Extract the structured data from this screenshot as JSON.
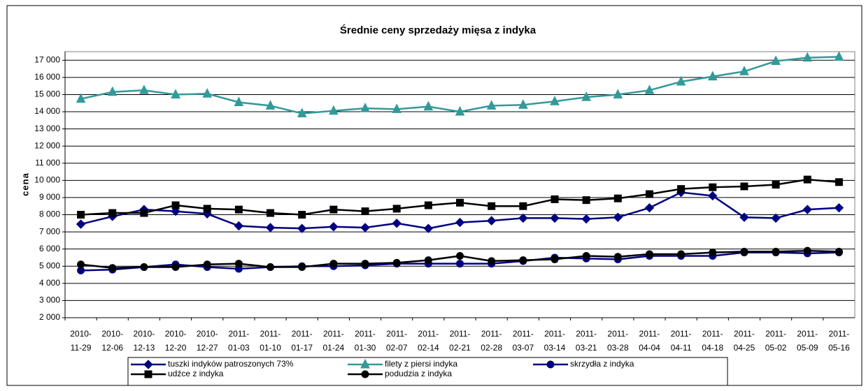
{
  "chart_data": {
    "type": "line",
    "title": "Średnie ceny sprzedaży mięsa z indyka",
    "y_label": "cena",
    "categories": [
      "2010-11-29",
      "2010-12-06",
      "2010-12-13",
      "2010-12-20",
      "2010-12-27",
      "2011-01-03",
      "2011-01-10",
      "2011-01-17",
      "2011-01-24",
      "2011-01-30",
      "2011-02-07",
      "2011-02-14",
      "2011-02-21",
      "2011-02-28",
      "2011-03-07",
      "2011-03-14",
      "2011-03-21",
      "2011-03-28",
      "2011-04-04",
      "2011-04-11",
      "2011-04-18",
      "2011-04-25",
      "2011-05-02",
      "2011-05-09",
      "2011-05-16"
    ],
    "series": [
      {
        "name": "tuszki indyków  patroszonych 73%",
        "color": "#000080",
        "marker": "diamond",
        "values": [
          7450,
          7900,
          8300,
          8200,
          8050,
          7350,
          7250,
          7200,
          7300,
          7250,
          7500,
          7200,
          7550,
          7650,
          7800,
          7800,
          7750,
          7850,
          8400,
          9300,
          9100,
          7850,
          7800,
          8300,
          8400
        ]
      },
      {
        "name": "filety z piersi indyka",
        "color": "#339999",
        "marker": "triangle",
        "values": [
          14750,
          15150,
          15250,
          15000,
          15050,
          14550,
          14350,
          13900,
          14050,
          14200,
          14150,
          14300,
          14000,
          14350,
          14400,
          14600,
          14850,
          15000,
          15250,
          15750,
          16050,
          16350,
          16950,
          17150,
          17200
        ]
      },
      {
        "name": "skrzydła z indyka",
        "color": "#000080",
        "marker": "circle",
        "values": [
          4750,
          4800,
          4950,
          5100,
          4950,
          4850,
          4950,
          5000,
          5000,
          5050,
          5150,
          5150,
          5150,
          5150,
          5300,
          5500,
          5450,
          5400,
          5600,
          5600,
          5600,
          5800,
          5800,
          5750,
          5800
        ]
      },
      {
        "name": "udźce z indyka",
        "color": "#000000",
        "marker": "square",
        "values": [
          8000,
          8100,
          8100,
          8550,
          8350,
          8300,
          8100,
          8000,
          8300,
          8200,
          8350,
          8550,
          8700,
          8500,
          8500,
          8900,
          8850,
          8950,
          9200,
          9500,
          9600,
          9650,
          9750,
          10050,
          9900
        ]
      },
      {
        "name": "podudzia z indyka",
        "color": "#000000",
        "marker": "circle",
        "values": [
          5100,
          4900,
          4950,
          4950,
          5100,
          5150,
          4950,
          4950,
          5150,
          5150,
          5200,
          5350,
          5600,
          5300,
          5350,
          5400,
          5600,
          5550,
          5700,
          5700,
          5800,
          5850,
          5850,
          5900,
          5850
        ]
      }
    ],
    "ylim": [
      2000,
      17500
    ],
    "yticks": [
      {
        "value": 2000,
        "label": "2 000"
      },
      {
        "value": 3000,
        "label": "3 000"
      },
      {
        "value": 4000,
        "label": "4 000"
      },
      {
        "value": 5000,
        "label": "5 000"
      },
      {
        "value": 6000,
        "label": "6 000"
      },
      {
        "value": 7000,
        "label": "7 000"
      },
      {
        "value": 8000,
        "label": "8 000"
      },
      {
        "value": 9000,
        "label": "9 000"
      },
      {
        "value": 10000,
        "label": "10 000"
      },
      {
        "value": 11000,
        "label": "11 000"
      },
      {
        "value": 12000,
        "label": "12 000"
      },
      {
        "value": 13000,
        "label": "13 000"
      },
      {
        "value": 14000,
        "label": "14 000"
      },
      {
        "value": 15000,
        "label": "15 000"
      },
      {
        "value": 16000,
        "label": "16 000"
      },
      {
        "value": 17000,
        "label": "17 000"
      }
    ],
    "grid": true,
    "legend": "bottom"
  }
}
